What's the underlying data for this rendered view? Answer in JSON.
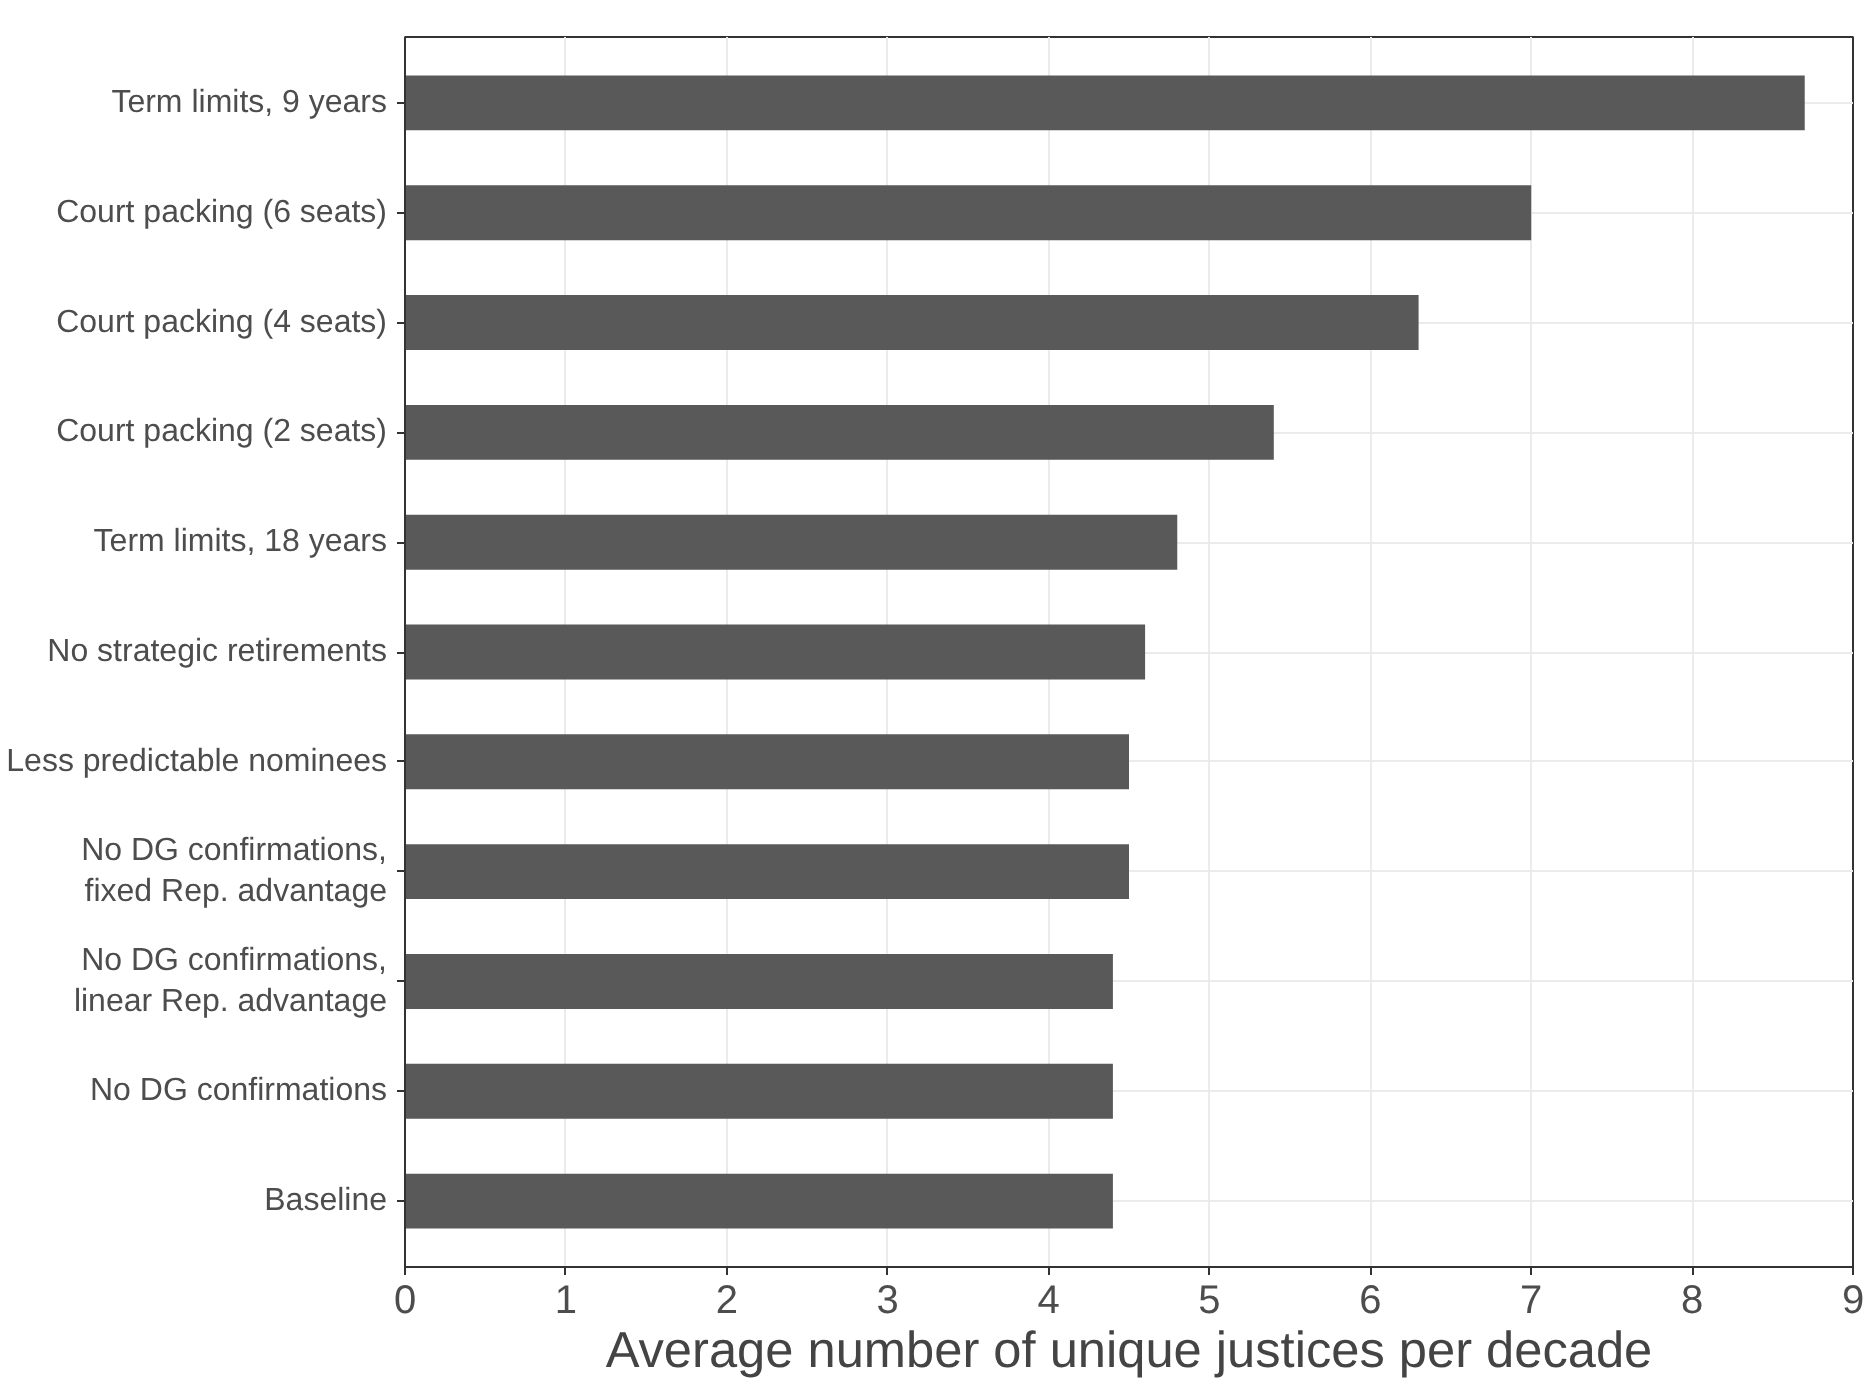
{
  "chart_data": {
    "type": "bar",
    "orientation": "horizontal",
    "xlabel": "Average number of unique justices per decade",
    "categories": [
      "Term limits, 9 years",
      "Court packing (6 seats)",
      "Court packing (4 seats)",
      "Court packing (2 seats)",
      "Term limits, 18 years",
      "No strategic retirements",
      "Less predictable nominees",
      "No DG confirmations,\nfixed Rep. advantage",
      "No DG confirmations,\nlinear Rep. advantage",
      "No DG confirmations",
      "Baseline"
    ],
    "values": [
      8.7,
      7.0,
      6.3,
      5.4,
      4.8,
      4.6,
      4.5,
      4.5,
      4.4,
      4.4,
      4.4
    ],
    "color": "#595959",
    "xlim": [
      0,
      9
    ],
    "xticks": [
      0,
      1,
      2,
      3,
      4,
      5,
      6,
      7,
      8,
      9
    ],
    "grid": true
  }
}
